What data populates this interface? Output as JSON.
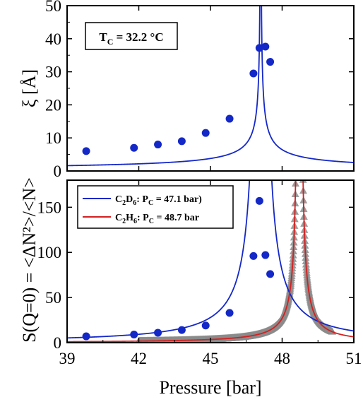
{
  "chart_data": [
    {
      "type": "scatter",
      "panel": "top",
      "ylabel": "ξ [Å]",
      "ylim": [
        0,
        50
      ],
      "yticks": [
        0,
        10,
        20,
        30,
        40,
        50
      ],
      "xlim": [
        39,
        51
      ],
      "annotation": {
        "T": "T",
        "sub": "C",
        "rest": " = 32.2 °C"
      },
      "series": [
        {
          "color": "#1428c8",
          "points": [
            [
              39.8,
              6.0
            ],
            [
              41.8,
              7.0
            ],
            [
              42.8,
              8.0
            ],
            [
              43.8,
              9.0
            ],
            [
              44.8,
              11.5
            ],
            [
              45.8,
              15.8
            ],
            [
              46.8,
              29.5
            ],
            [
              47.05,
              37.2
            ],
            [
              47.3,
              37.6
            ],
            [
              47.5,
              33.0
            ]
          ],
          "fit": {
            "critical_pressure": 47.1,
            "amplitude": 9.0,
            "exponent": 0.63,
            "scale": 0.53
          }
        }
      ]
    },
    {
      "type": "scatter",
      "panel": "bottom",
      "ylabel": "S(Q=0) = <ΔN²>/<N>",
      "xlabel": "Pressure [bar]",
      "ylim": [
        0,
        180
      ],
      "yticks": [
        0,
        50,
        100,
        150
      ],
      "xlim": [
        39,
        51
      ],
      "xticks": [
        39,
        42,
        45,
        48,
        51
      ],
      "legend_position": "top-left",
      "series": [
        {
          "name": {
            "a": "C",
            "s1": "2",
            "b": "D",
            "s2": "6",
            "c": ": P",
            "s3": "C",
            "d": " = 47.1 bar)"
          },
          "color": "#1428c8",
          "points": [
            [
              39.8,
              7
            ],
            [
              41.8,
              9
            ],
            [
              42.8,
              11
            ],
            [
              43.8,
              14
            ],
            [
              44.8,
              19
            ],
            [
              45.8,
              33
            ],
            [
              46.8,
              96
            ],
            [
              47.05,
              157
            ],
            [
              47.3,
              97
            ],
            [
              47.5,
              76
            ]
          ],
          "fit": {
            "critical_pressure": 47.1,
            "amplitude": 70.0,
            "exponent": 1.24,
            "scale": 1.0
          }
        },
        {
          "name": {
            "a": "C",
            "s1": "2",
            "b": "H",
            "s2": "6",
            "c": ": P",
            "s3": "C",
            "d": " = 48.7 bar"
          },
          "color": "#d42020",
          "marker_color": "#8c8c8c",
          "points_range": [
            42.0,
            50.1
          ],
          "fit": {
            "critical_pressure": 48.72,
            "amplitude": 18.0,
            "exponent": 1.24,
            "scale": 1.0
          }
        }
      ]
    }
  ]
}
